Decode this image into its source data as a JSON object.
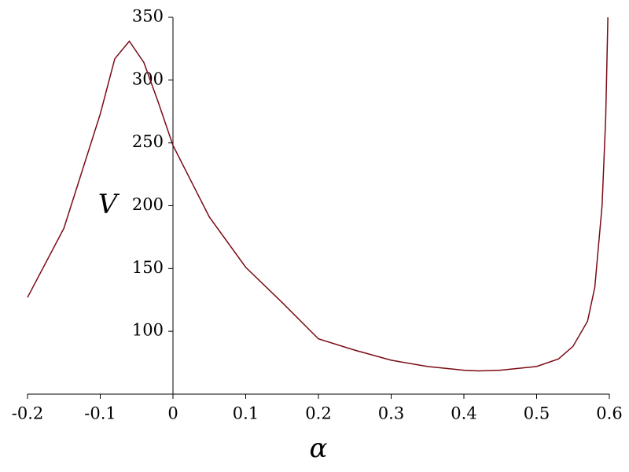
{
  "chart_data": {
    "type": "line",
    "x_label": "α",
    "y_label": "V",
    "x": [
      -0.2,
      -0.15,
      -0.1,
      -0.08,
      -0.06,
      -0.04,
      -0.02,
      0,
      0.05,
      0.1,
      0.15,
      0.2,
      0.25,
      0.3,
      0.35,
      0.4,
      0.42,
      0.45,
      0.5,
      0.53,
      0.55,
      0.57,
      0.58,
      0.59,
      0.595,
      0.598
    ],
    "series": [
      {
        "color": "#7a0a14",
        "values": [
          127,
          182,
          273,
          317,
          331,
          314,
          282,
          248,
          191,
          151,
          123,
          94,
          85,
          77,
          72,
          69,
          68.5,
          69,
          72,
          78,
          88,
          108,
          135,
          200,
          270,
          350
        ]
      }
    ],
    "xlim": [
      -0.2,
      0.6
    ],
    "xticks": [
      -0.2,
      -0.1,
      0,
      0.1,
      0.2,
      0.3,
      0.4,
      0.5,
      0.6
    ],
    "ylim": [
      50,
      350
    ],
    "yticks": [
      100,
      150,
      200,
      250,
      300,
      350
    ]
  }
}
